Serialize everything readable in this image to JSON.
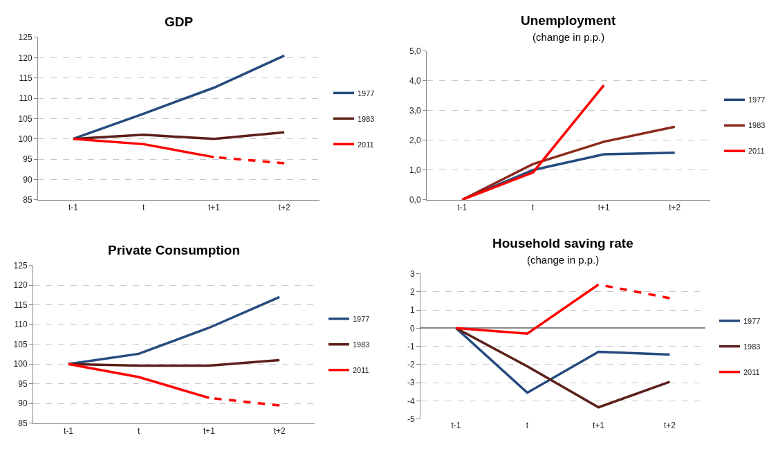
{
  "chart_data": [
    {
      "type": "line",
      "title": "GDP",
      "categories": [
        "t-1",
        "t",
        "t+1",
        "t+2"
      ],
      "ylim": [
        85,
        125
      ],
      "yticks": [
        85,
        90,
        95,
        100,
        105,
        110,
        115,
        120,
        125
      ],
      "grid": "y",
      "legend": "right",
      "line_style": "solid",
      "series": [
        {
          "name": "1977",
          "color": "#254b7e",
          "values": [
            100,
            106.2,
            112.6,
            120.5
          ]
        },
        {
          "name": "1983",
          "color": "#5c1f1a",
          "values": [
            100,
            101,
            100,
            101.6
          ]
        },
        {
          "name": "2011",
          "color": "#ff0000",
          "values": [
            100,
            98.7,
            95.5,
            null
          ]
        },
        {
          "color": "#ff0000",
          "line_style": "dashed",
          "values": [
            null,
            null,
            95.5,
            94
          ]
        }
      ]
    },
    {
      "type": "line",
      "title": "Unemployment",
      "subtitle": "(change in p.p.)",
      "categories": [
        "t-1",
        "t",
        "t+1",
        "t+2"
      ],
      "ylim": [
        0,
        5
      ],
      "yticks": [
        {
          "value": 0,
          "label": "0,0"
        },
        {
          "value": 1,
          "label": "1,0"
        },
        {
          "value": 2,
          "label": "2,0"
        },
        {
          "value": 3,
          "label": "3,0"
        },
        {
          "value": 4,
          "label": "4,0"
        },
        {
          "value": 5,
          "label": "5,0"
        }
      ],
      "grid": "y",
      "legend": "right",
      "line_style": "solid",
      "series": [
        {
          "name": "1977",
          "color": "#254b7e",
          "values": [
            0,
            1.0,
            1.53,
            1.58
          ]
        },
        {
          "name": "1983",
          "color": "#8b2a1e",
          "values": [
            0,
            1.2,
            1.95,
            2.45
          ]
        },
        {
          "name": "2011",
          "color": "#ff0000",
          "values": [
            0,
            0.92,
            3.85,
            null
          ]
        }
      ]
    },
    {
      "type": "line",
      "title": "Private Consumption",
      "categories": [
        "t-1",
        "t",
        "t+1",
        "t+2"
      ],
      "ylim": [
        85,
        125
      ],
      "yticks": [
        85,
        90,
        95,
        100,
        105,
        110,
        115,
        120,
        125
      ],
      "grid": "y",
      "legend": "right",
      "line_style": "solid",
      "series": [
        {
          "name": "1977",
          "color": "#254b7e",
          "values": [
            100,
            102.6,
            109.2,
            117
          ]
        },
        {
          "name": "1983",
          "color": "#5c1f1a",
          "values": [
            100,
            99.6,
            99.6,
            101
          ]
        },
        {
          "name": "2011",
          "color": "#ff0000",
          "values": [
            100,
            96.7,
            91.4,
            null
          ]
        },
        {
          "color": "#ff0000",
          "line_style": "dashed",
          "values": [
            null,
            null,
            91.4,
            89.5
          ]
        }
      ]
    },
    {
      "type": "line",
      "title": "Household saving rate",
      "subtitle": "(change in p.p.)",
      "categories": [
        "t-1",
        "t",
        "t+1",
        "t+2"
      ],
      "ylim": [
        -5,
        3
      ],
      "yticks": [
        -5,
        -4,
        -3,
        -2,
        -1,
        0,
        1,
        2,
        3
      ],
      "grid": "y",
      "legend": "right",
      "line_style": "solid",
      "series": [
        {
          "name": "1977",
          "color": "#254b7e",
          "values": [
            0,
            -3.55,
            -1.3,
            -1.45
          ]
        },
        {
          "name": "1983",
          "color": "#5c1f1a",
          "values": [
            0,
            -2.1,
            -4.35,
            -2.95
          ]
        },
        {
          "name": "2011",
          "color": "#ff0000",
          "values": [
            0,
            -0.3,
            2.4,
            null
          ]
        },
        {
          "color": "#ff0000",
          "line_style": "dashed",
          "values": [
            null,
            null,
            2.4,
            1.65
          ]
        }
      ]
    }
  ]
}
